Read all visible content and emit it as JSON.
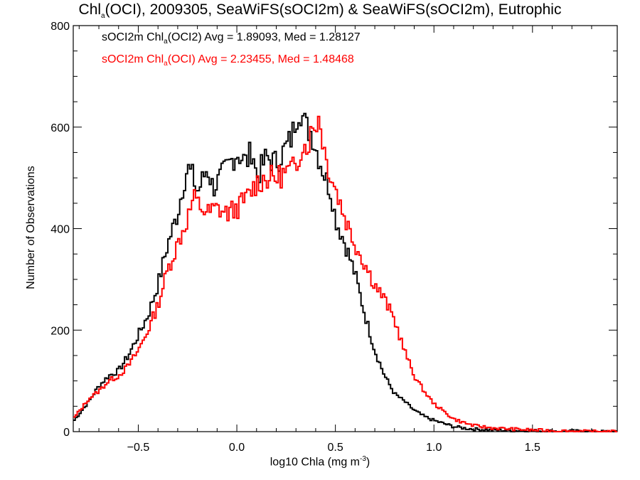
{
  "chart_data": {
    "type": "line",
    "title": {
      "pre": "Chl",
      "sub": "a",
      "post": "(OCI), 2009305, SeaWiFS(sOCI2m) & SeaWiFS(sOCI2m), Eutrophic"
    },
    "xlabel": {
      "pre": "log10 Chla (mg m",
      "sup": "-3",
      "post": ")"
    },
    "ylabel": "Number of Observations",
    "xlim": [
      -0.83,
      1.93
    ],
    "ylim": [
      0,
      800
    ],
    "xticks": [
      -0.5,
      0.0,
      0.5,
      1.0,
      1.5
    ],
    "xtick_labels": [
      "−0.5",
      "0.0",
      "0.5",
      "1.0",
      "1.5"
    ],
    "yticks": [
      0,
      200,
      400,
      600,
      800
    ],
    "ytick_labels": [
      "0",
      "200",
      "400",
      "600",
      "800"
    ],
    "legend": [
      {
        "pre": "sOCI2m Chl",
        "sub": "a",
        "post": "(OCI2) Avg = 1.89093, Med = 1.28127",
        "color": "#000000"
      },
      {
        "pre": "sOCI2m Chl",
        "sub": "a",
        "post": "(OCI) Avg = 2.23455, Med = 1.48468",
        "color": "#ff0000"
      }
    ],
    "series": [
      {
        "color": "#000000",
        "x": [
          -0.83,
          -0.75,
          -0.7,
          -0.65,
          -0.6,
          -0.55,
          -0.5,
          -0.45,
          -0.4,
          -0.35,
          -0.3,
          -0.27,
          -0.25,
          -0.22,
          -0.2,
          -0.15,
          -0.12,
          -0.1,
          -0.05,
          0.0,
          0.05,
          0.08,
          0.1,
          0.15,
          0.2,
          0.25,
          0.28,
          0.3,
          0.32,
          0.35,
          0.38,
          0.4,
          0.45,
          0.48,
          0.5,
          0.55,
          0.6,
          0.65,
          0.7,
          0.75,
          0.8,
          0.85,
          0.9,
          0.95,
          1.0,
          1.05,
          1.1,
          1.15,
          1.2,
          1.25,
          1.3,
          1.4,
          1.5,
          1.6,
          1.7,
          1.8,
          1.93
        ],
        "y": [
          20,
          60,
          90,
          110,
          120,
          150,
          190,
          230,
          290,
          370,
          430,
          490,
          520,
          500,
          470,
          520,
          480,
          490,
          520,
          550,
          530,
          560,
          500,
          540,
          530,
          560,
          580,
          620,
          640,
          600,
          590,
          560,
          500,
          470,
          420,
          370,
          310,
          230,
          160,
          110,
          75,
          60,
          42,
          30,
          22,
          16,
          10,
          7,
          5,
          4,
          3,
          2,
          2,
          1,
          1,
          0,
          0
        ]
      },
      {
        "color": "#ff0000",
        "x": [
          -0.83,
          -0.75,
          -0.7,
          -0.65,
          -0.6,
          -0.55,
          -0.5,
          -0.45,
          -0.4,
          -0.35,
          -0.3,
          -0.25,
          -0.22,
          -0.2,
          -0.15,
          -0.1,
          -0.05,
          0.0,
          0.05,
          0.1,
          0.15,
          0.2,
          0.25,
          0.3,
          0.33,
          0.35,
          0.38,
          0.4,
          0.42,
          0.45,
          0.5,
          0.55,
          0.6,
          0.65,
          0.7,
          0.75,
          0.8,
          0.85,
          0.9,
          0.95,
          1.0,
          1.05,
          1.1,
          1.15,
          1.2,
          1.3,
          1.4,
          1.5,
          1.6,
          1.7,
          1.8,
          1.93
        ],
        "y": [
          25,
          65,
          80,
          100,
          110,
          130,
          160,
          200,
          250,
          320,
          370,
          420,
          460,
          450,
          430,
          440,
          430,
          440,
          460,
          490,
          500,
          500,
          510,
          520,
          570,
          560,
          590,
          610,
          620,
          540,
          480,
          420,
          370,
          330,
          290,
          260,
          220,
          160,
          110,
          80,
          55,
          40,
          25,
          18,
          12,
          7,
          5,
          3,
          2,
          1,
          0,
          0
        ]
      }
    ]
  }
}
